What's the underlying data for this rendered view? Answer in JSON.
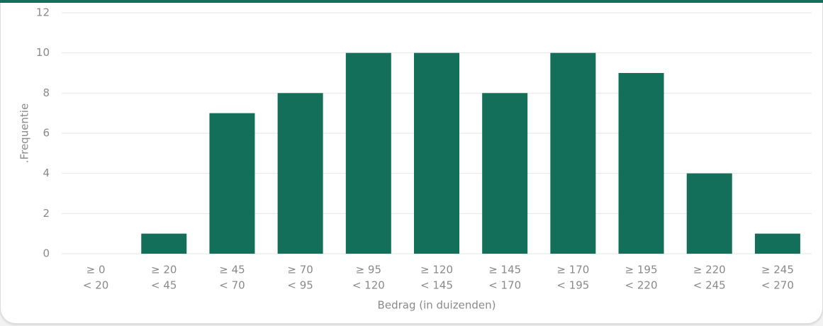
{
  "chart_data": {
    "type": "bar",
    "y_label": ".Frequentie",
    "x_label": "Bedrag (in duizenden)",
    "categories": [
      [
        "≥ 0",
        "< 20"
      ],
      [
        "≥ 20",
        "< 45"
      ],
      [
        "≥ 45",
        "< 70"
      ],
      [
        "≥ 70",
        "< 95"
      ],
      [
        "≥ 95",
        "< 120"
      ],
      [
        "≥ 120",
        "< 145"
      ],
      [
        "≥ 145",
        "< 170"
      ],
      [
        "≥ 170",
        "< 195"
      ],
      [
        "≥ 195",
        "< 220"
      ],
      [
        "≥ 220",
        "< 245"
      ],
      [
        "≥ 245",
        "< 270"
      ]
    ],
    "values": [
      0,
      1,
      7,
      8,
      10,
      10,
      8,
      10,
      9,
      4,
      1
    ],
    "color": "#136f5a",
    "ylim": [
      0,
      12
    ],
    "yticks": [
      0,
      2,
      4,
      6,
      8,
      10,
      12
    ],
    "grid": true
  }
}
